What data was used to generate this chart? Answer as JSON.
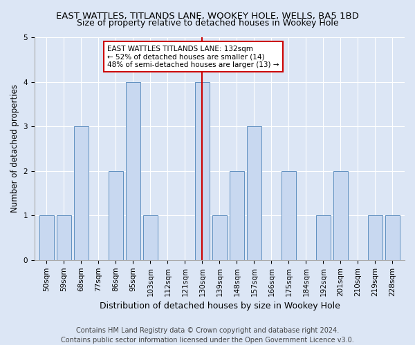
{
  "title": "EAST WATTLES, TITLANDS LANE, WOOKEY HOLE, WELLS, BA5 1BD",
  "subtitle": "Size of property relative to detached houses in Wookey Hole",
  "xlabel": "Distribution of detached houses by size in Wookey Hole",
  "ylabel": "Number of detached properties",
  "categories": [
    "50sqm",
    "59sqm",
    "68sqm",
    "77sqm",
    "86sqm",
    "95sqm",
    "103sqm",
    "112sqm",
    "121sqm",
    "130sqm",
    "139sqm",
    "148sqm",
    "157sqm",
    "166sqm",
    "175sqm",
    "184sqm",
    "192sqm",
    "201sqm",
    "210sqm",
    "219sqm",
    "228sqm"
  ],
  "values": [
    1,
    1,
    3,
    0,
    2,
    4,
    1,
    0,
    0,
    4,
    1,
    2,
    3,
    0,
    2,
    0,
    1,
    2,
    0,
    1,
    1
  ],
  "bar_color": "#c8d8f0",
  "bar_edge_color": "#6090c0",
  "highlight_index": 9,
  "highlight_line_color": "#cc0000",
  "annotation_text": "EAST WATTLES TITLANDS LANE: 132sqm\n← 52% of detached houses are smaller (14)\n48% of semi-detached houses are larger (13) →",
  "annotation_box_color": "#ffffff",
  "annotation_box_edge_color": "#cc0000",
  "ylim": [
    0,
    5
  ],
  "yticks": [
    0,
    1,
    2,
    3,
    4,
    5
  ],
  "footer": "Contains HM Land Registry data © Crown copyright and database right 2024.\nContains public sector information licensed under the Open Government Licence v3.0.",
  "background_color": "#dce6f5",
  "plot_bg_color": "#dce6f5",
  "title_fontsize": 9.5,
  "xlabel_fontsize": 9,
  "ylabel_fontsize": 8.5,
  "tick_fontsize": 7.5,
  "annotation_fontsize": 7.5,
  "footer_fontsize": 7
}
